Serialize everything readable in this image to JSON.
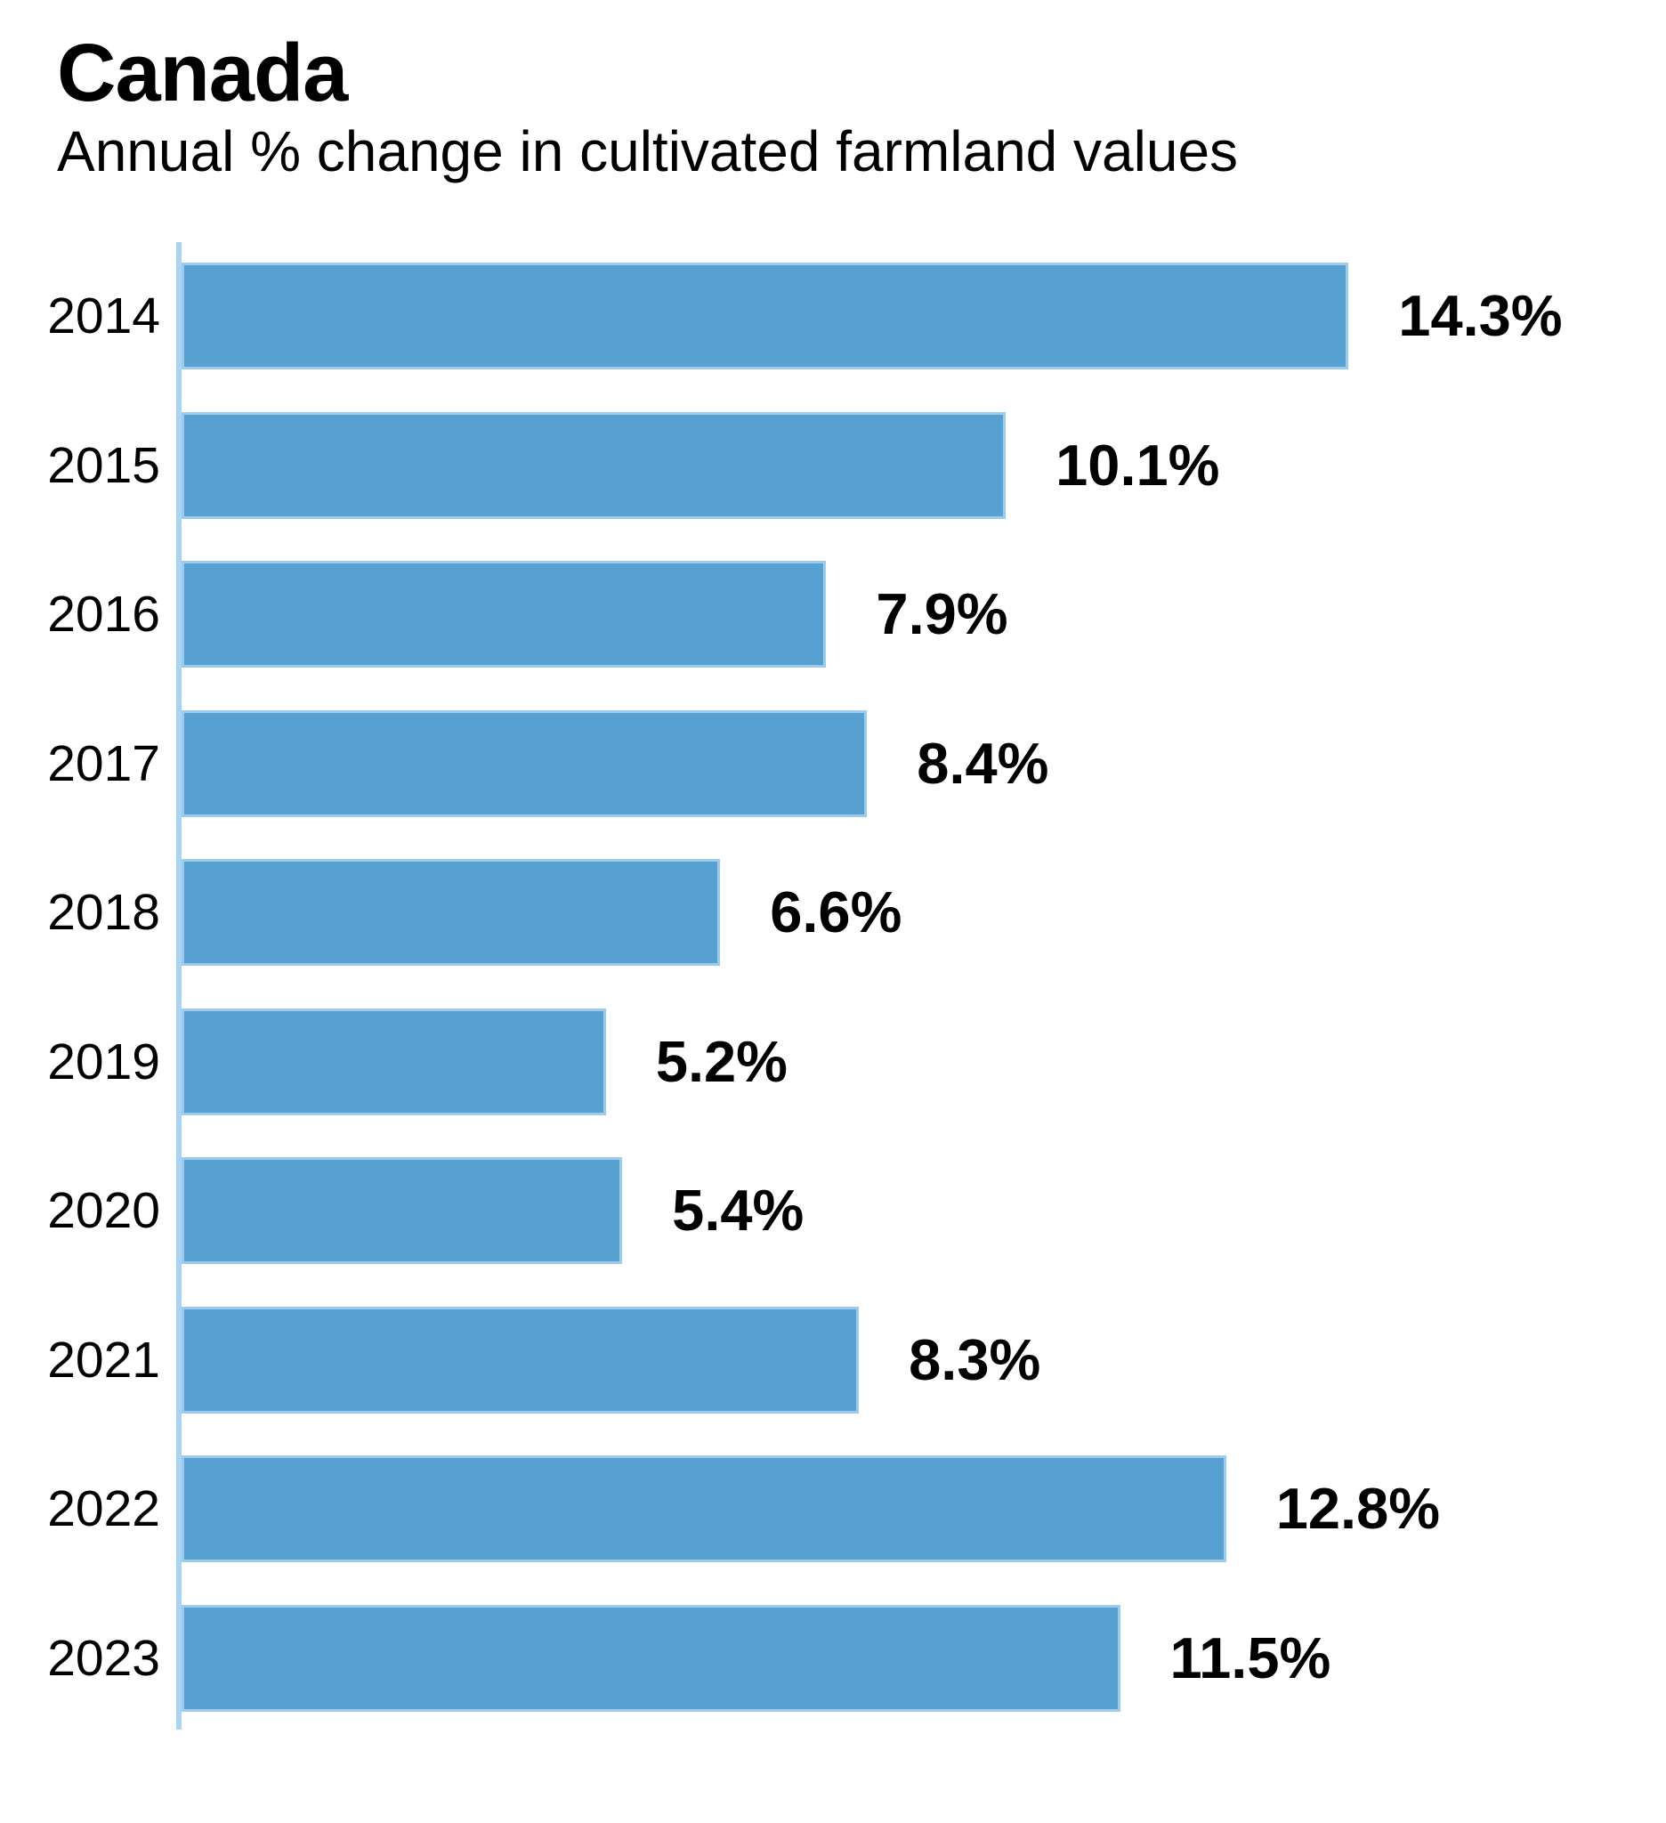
{
  "page": {
    "background_color": "#ffffff"
  },
  "header": {
    "title": "Canada",
    "subtitle": "Annual % change in cultivated farmland values"
  },
  "chart_data": {
    "type": "bar",
    "orientation": "horizontal",
    "title": "Canada",
    "subtitle": "Annual % change in cultivated farmland values",
    "categories": [
      "2014",
      "2015",
      "2016",
      "2017",
      "2018",
      "2019",
      "2020",
      "2021",
      "2022",
      "2023"
    ],
    "values": [
      14.3,
      10.1,
      7.9,
      8.4,
      6.6,
      5.2,
      5.4,
      8.3,
      12.8,
      11.5
    ],
    "value_labels": [
      "14.3%",
      "10.1%",
      "7.9%",
      "8.4%",
      "6.6%",
      "5.2%",
      "5.4%",
      "8.3%",
      "12.8%",
      "11.5%"
    ],
    "xlabel": "",
    "ylabel": "",
    "xlim": [
      0,
      14.3
    ],
    "grid": false,
    "legend": false,
    "bar_color": "#57a0d2",
    "bar_edge_color": "#9dcbec",
    "axis_line_color": "#a9d5f3",
    "text_color": "#000000"
  }
}
